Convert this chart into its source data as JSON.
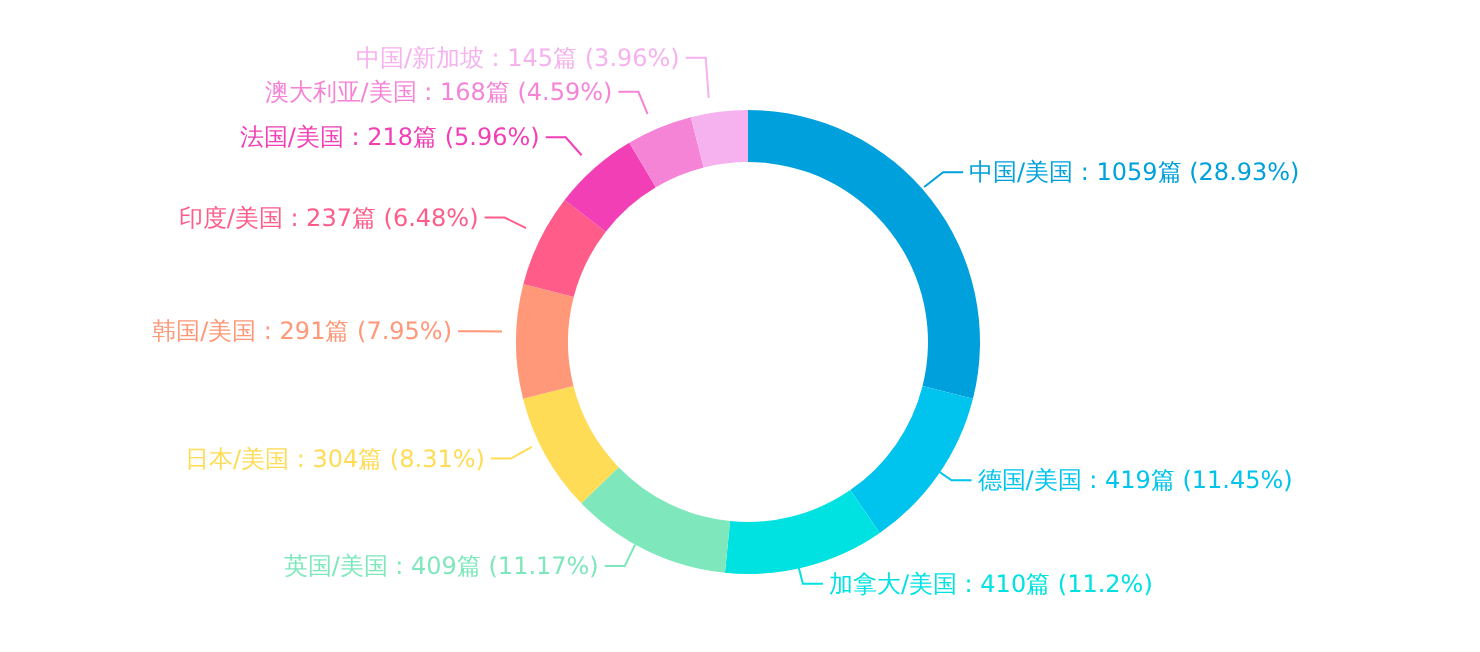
{
  "chart_data": {
    "type": "donut",
    "categories": [
      "中国/美国",
      "德国/美国",
      "加拿大/美国",
      "英国/美国",
      "日本/美国",
      "韩国/美国",
      "印度/美国",
      "法国/美国",
      "澳大利亚/美国",
      "中国/新加坡"
    ],
    "values": [
      1059,
      419,
      410,
      409,
      304,
      291,
      237,
      218,
      168,
      145
    ],
    "value_labels": [
      ": 1059篇 (28.93%)",
      ": 419篇 (11.45%)",
      ": 410篇 (11.2%)",
      ": 409篇 (11.17%)",
      ": 304篇 (8.31%)",
      ": 291篇 (7.95%)",
      ": 237篇 (6.48%)",
      ": 218篇 (5.96%)",
      ": 168篇 (4.59%)",
      ": 145篇 (3.96%)"
    ],
    "colors": [
      "#00a0dc",
      "#00c4ee",
      "#00e2e2",
      "#7ee8bc",
      "#ffdc55",
      "#ff9878",
      "#ff5c8a",
      "#f23fb6",
      "#f684d6",
      "#f5b2ee"
    ],
    "legend": false
  }
}
